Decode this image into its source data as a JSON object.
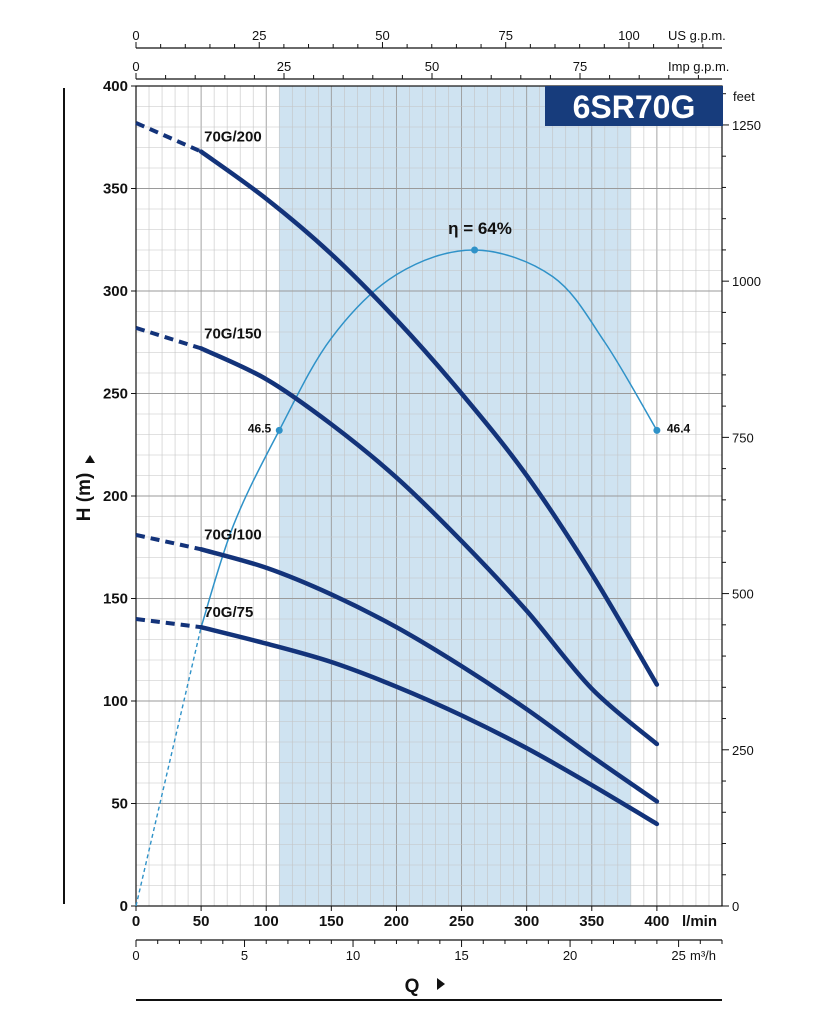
{
  "chart_data": {
    "type": "line",
    "title": "6SR70G",
    "xlabel": "Q",
    "ylabel": "H (m)",
    "x_unit": "l/min",
    "xlim": [
      0,
      450
    ],
    "ylim": [
      0,
      400
    ],
    "grid": true,
    "colors": {
      "curve": "#13337a",
      "efficiency": "#2f92c8",
      "band": "#cfe3f1",
      "title_bg": "#173c7c",
      "title_fg": "#ffffff"
    },
    "recommended_range": [
      110,
      380
    ],
    "x_ticks": [
      0,
      50,
      100,
      150,
      200,
      250,
      300,
      350,
      400
    ],
    "y_ticks": [
      0,
      50,
      100,
      150,
      200,
      250,
      300,
      350,
      400
    ],
    "right_axis": {
      "label": "feet",
      "ticks": [
        0,
        250,
        500,
        750,
        1000,
        1250
      ]
    },
    "top_axis_us": {
      "label": "US g.p.m.",
      "ticks": [
        0,
        25,
        50,
        75,
        100
      ]
    },
    "top_axis_imp": {
      "label": "Imp g.p.m.",
      "ticks": [
        0,
        25,
        50,
        75
      ]
    },
    "bottom_axis_m3h": {
      "label": "m³/h",
      "ticks": [
        0,
        5,
        10,
        15,
        20,
        25
      ]
    },
    "series": [
      {
        "name": "70G/200",
        "x": [
          50,
          100,
          150,
          200,
          250,
          300,
          350,
          400
        ],
        "y": [
          368,
          345,
          318,
          286,
          250,
          210,
          162,
          108
        ],
        "dashed_x": [
          0,
          50
        ],
        "dashed_y": [
          382,
          368
        ]
      },
      {
        "name": "70G/150",
        "x": [
          50,
          100,
          150,
          200,
          250,
          300,
          350,
          400
        ],
        "y": [
          272,
          257,
          235,
          209,
          178,
          144,
          106,
          79
        ],
        "dashed_x": [
          0,
          50
        ],
        "dashed_y": [
          282,
          272
        ]
      },
      {
        "name": "70G/100",
        "x": [
          50,
          100,
          150,
          200,
          250,
          300,
          350,
          400
        ],
        "y": [
          174,
          165,
          152,
          136,
          117,
          96,
          73,
          51
        ],
        "dashed_x": [
          0,
          50
        ],
        "dashed_y": [
          181,
          174
        ]
      },
      {
        "name": "70G/75",
        "x": [
          50,
          100,
          150,
          200,
          250,
          300,
          350,
          400
        ],
        "y": [
          136,
          128,
          119,
          107,
          93,
          77,
          59,
          40
        ],
        "dashed_x": [
          0,
          50
        ],
        "dashed_y": [
          140,
          136
        ]
      }
    ],
    "efficiency": {
      "label": "η = 64%",
      "x": [
        50,
        75,
        110,
        150,
        200,
        260,
        320,
        360,
        400
      ],
      "y": [
        136,
        186,
        232,
        277,
        308,
        320,
        307,
        275,
        232
      ],
      "dashed_x": [
        0,
        50
      ],
      "dashed_y": [
        0,
        136
      ],
      "marked_points": [
        {
          "x": 110,
          "y": 232,
          "label": "46.5"
        },
        {
          "x": 260,
          "y": 320,
          "label": ""
        },
        {
          "x": 400,
          "y": 232,
          "label": "46.4"
        }
      ]
    }
  }
}
